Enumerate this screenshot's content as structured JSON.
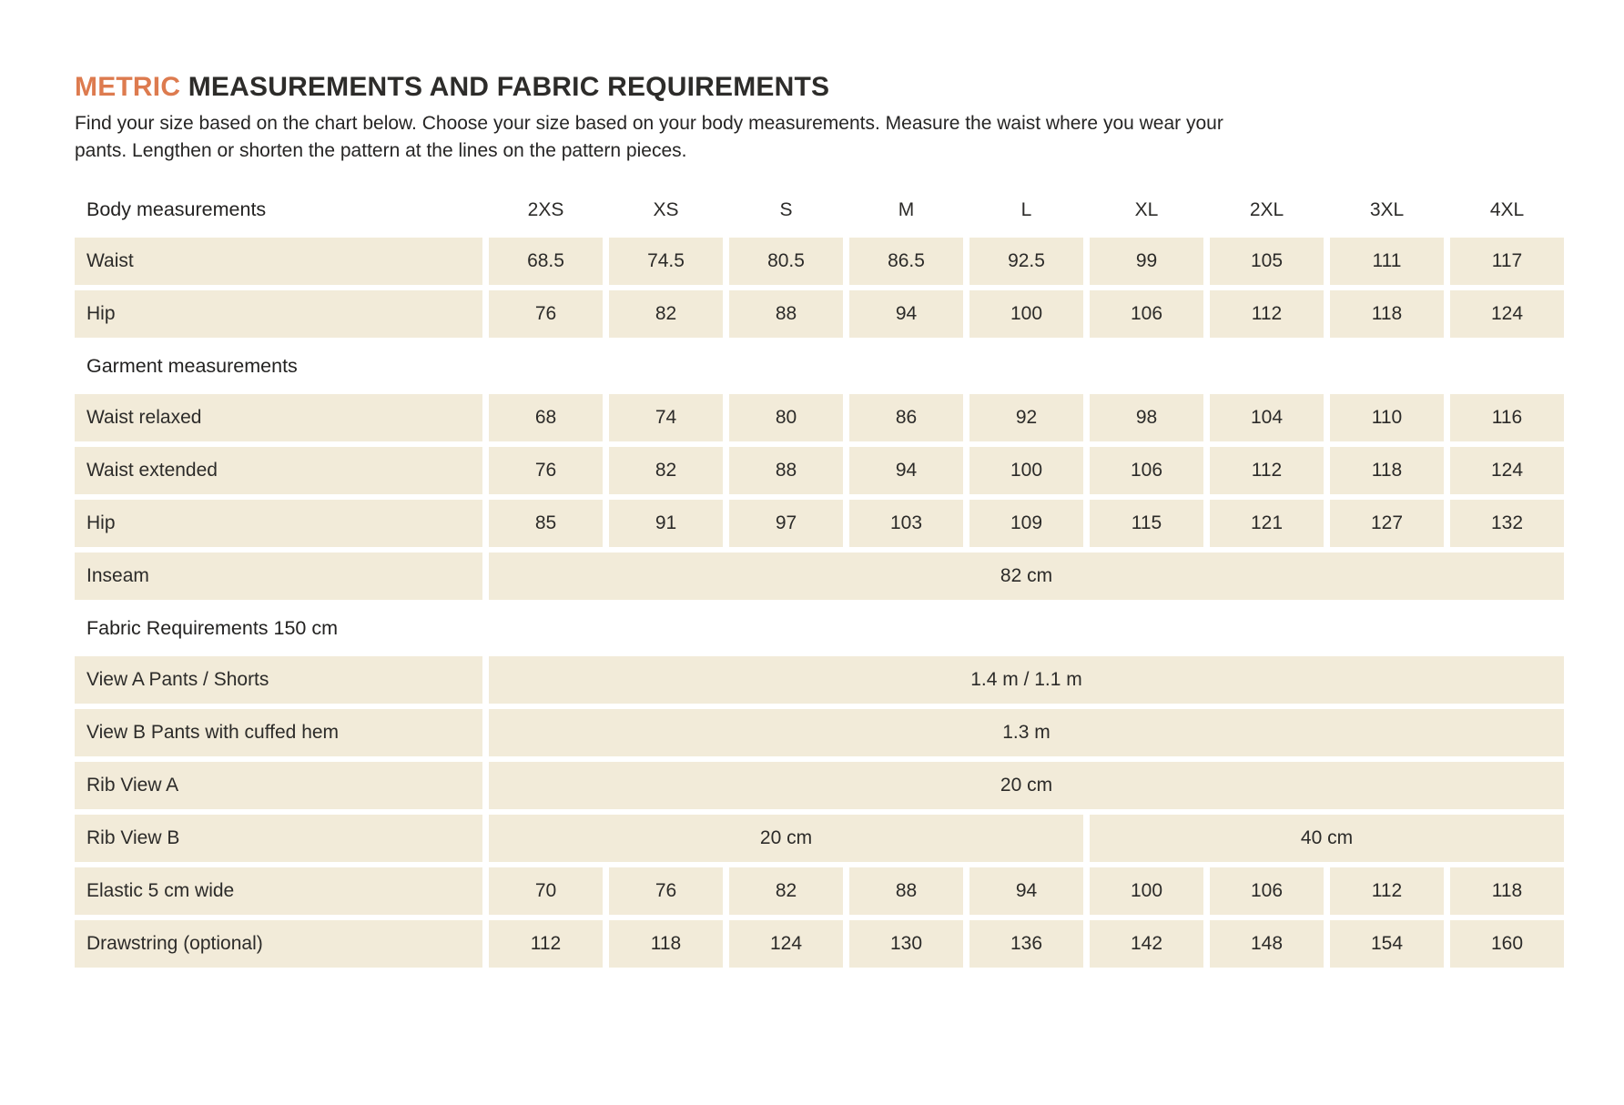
{
  "page": {
    "title_accent": "METRIC",
    "title_rest": " MEASUREMENTS AND FABRIC REQUIREMENTS",
    "intro_lines": [
      "Find your size based on the chart below. Choose your size based on your body measurements. Measure the waist where you wear your",
      "pants. Lengthen or shorten the pattern at the lines on the pattern pieces."
    ]
  },
  "colors": {
    "accent": "#dd7b4f",
    "cell_background": "#f2ebd9",
    "text": "#2c2b29"
  },
  "table": {
    "sizes": [
      "2XS",
      "XS",
      "S",
      "M",
      "L",
      "XL",
      "2XL",
      "3XL",
      "4XL"
    ],
    "sections": [
      {
        "header": "Body measurements",
        "rows": [
          {
            "label": "Waist",
            "type": "values",
            "values": [
              "68.5",
              "74.5",
              "80.5",
              "86.5",
              "92.5",
              "99",
              "105",
              "111",
              "117"
            ]
          },
          {
            "label": "Hip",
            "type": "values",
            "values": [
              "76",
              "82",
              "88",
              "94",
              "100",
              "106",
              "112",
              "118",
              "124"
            ]
          }
        ]
      },
      {
        "header": "Garment measurements",
        "rows": [
          {
            "label": "Waist relaxed",
            "type": "values",
            "values": [
              "68",
              "74",
              "80",
              "86",
              "92",
              "98",
              "104",
              "110",
              "116"
            ]
          },
          {
            "label": "Waist extended",
            "type": "values",
            "values": [
              "76",
              "82",
              "88",
              "94",
              "100",
              "106",
              "112",
              "118",
              "124"
            ]
          },
          {
            "label": "Hip",
            "type": "values",
            "values": [
              "85",
              "91",
              "97",
              "103",
              "109",
              "115",
              "121",
              "127",
              "132"
            ]
          },
          {
            "label": "Inseam",
            "type": "span",
            "span_value": "82 cm"
          }
        ]
      },
      {
        "header": "Fabric Requirements 150 cm",
        "rows": [
          {
            "label": "View A Pants / Shorts",
            "type": "span",
            "span_value": "1.4 m / 1.1 m"
          },
          {
            "label": "View B Pants with cuffed hem",
            "type": "span",
            "span_value": "1.3 m"
          },
          {
            "label": "Rib View A",
            "type": "span",
            "span_value": "20 cm"
          },
          {
            "label": "Rib View B",
            "type": "split",
            "left_value": "20 cm",
            "left_cols": 5,
            "right_value": "40 cm",
            "right_cols": 4
          },
          {
            "label": "Elastic 5 cm wide",
            "type": "values",
            "values": [
              "70",
              "76",
              "82",
              "88",
              "94",
              "100",
              "106",
              "112",
              "118"
            ]
          },
          {
            "label": "Drawstring (optional)",
            "type": "values",
            "values": [
              "112",
              "118",
              "124",
              "130",
              "136",
              "142",
              "148",
              "154",
              "160"
            ]
          }
        ]
      }
    ]
  }
}
